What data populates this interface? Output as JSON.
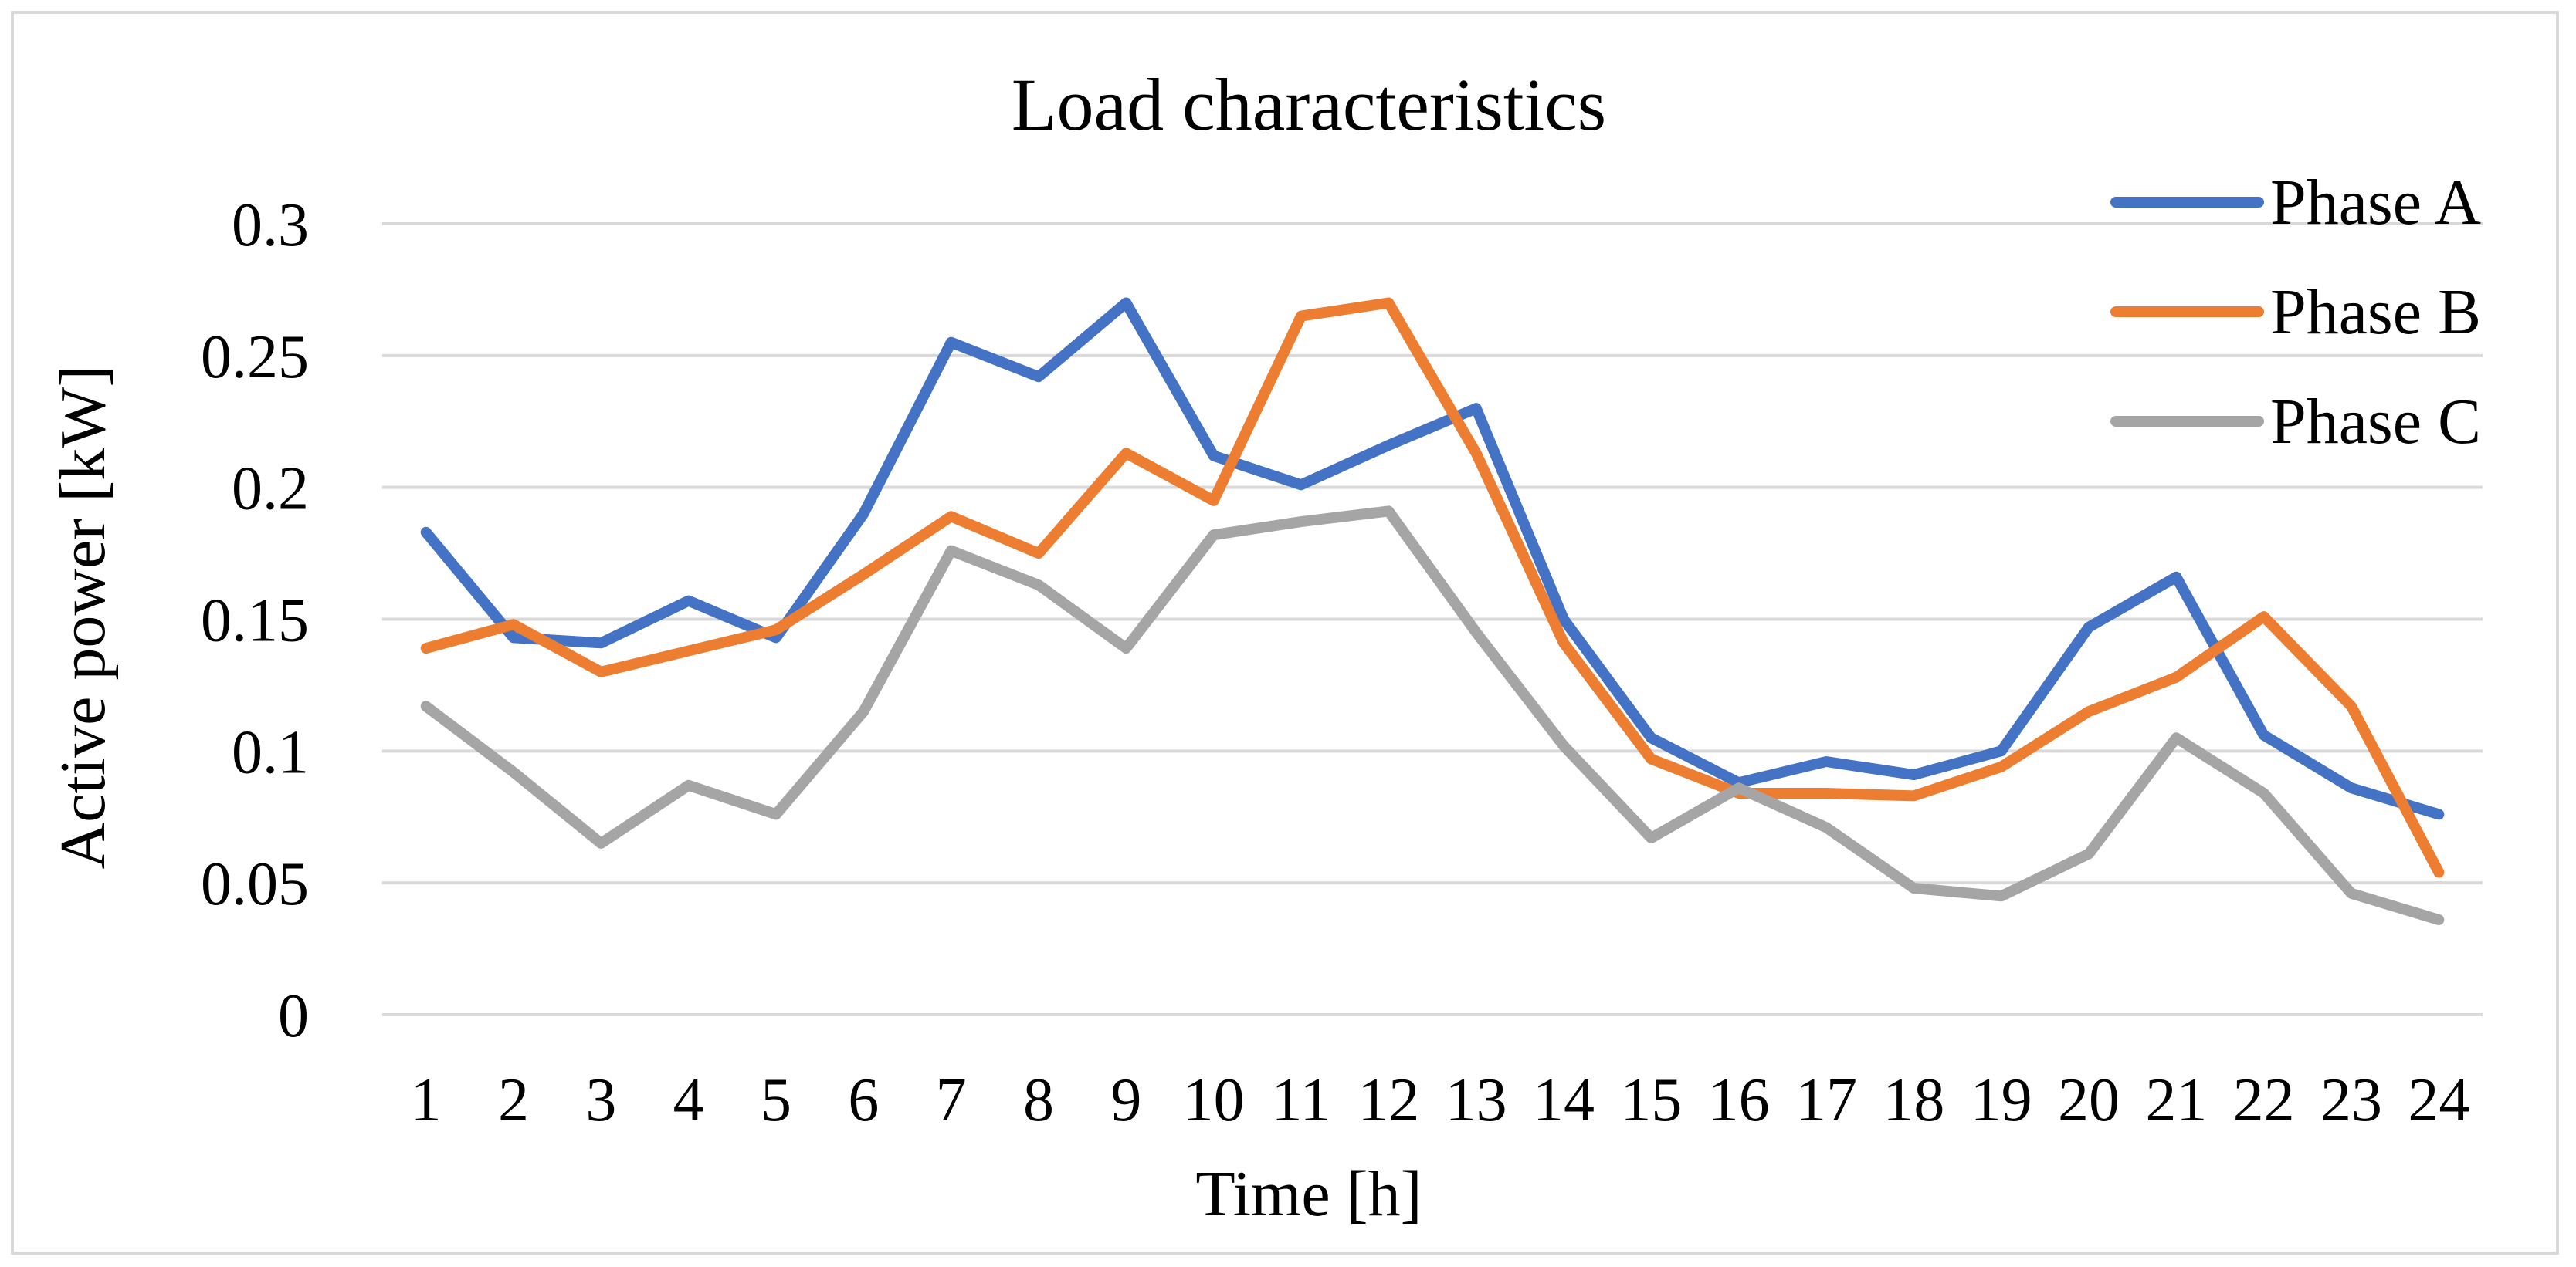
{
  "chart_data": {
    "type": "line",
    "title": "Load characteristics",
    "xlabel": "Time [h]",
    "ylabel": "Active power [kW]",
    "categories": [
      "1",
      "2",
      "3",
      "4",
      "5",
      "6",
      "7",
      "8",
      "9",
      "10",
      "11",
      "12",
      "13",
      "14",
      "15",
      "16",
      "17",
      "18",
      "19",
      "20",
      "21",
      "22",
      "23",
      "24"
    ],
    "ylim": [
      0,
      0.3
    ],
    "yticks": [
      "0",
      "0.05",
      "0.1",
      "0.15",
      "0.2",
      "0.25",
      "0.3"
    ],
    "grid": true,
    "legend_position": "top-right",
    "series": [
      {
        "name": "Phase A",
        "color": "#4472c4",
        "values": [
          0.183,
          0.143,
          0.141,
          0.157,
          0.143,
          0.19,
          0.255,
          0.242,
          0.27,
          0.212,
          0.201,
          0.216,
          0.23,
          0.15,
          0.105,
          0.088,
          0.096,
          0.091,
          0.1,
          0.147,
          0.166,
          0.106,
          0.086,
          0.076
        ]
      },
      {
        "name": "Phase B",
        "color": "#ed7d31",
        "values": [
          0.139,
          0.148,
          0.13,
          0.138,
          0.146,
          0.167,
          0.189,
          0.175,
          0.213,
          0.195,
          0.265,
          0.27,
          0.213,
          0.141,
          0.097,
          0.084,
          0.084,
          0.083,
          0.094,
          0.115,
          0.128,
          0.151,
          0.117,
          0.054
        ]
      },
      {
        "name": "Phase C",
        "color": "#a5a5a5",
        "values": [
          0.117,
          0.092,
          0.065,
          0.087,
          0.076,
          0.115,
          0.176,
          0.163,
          0.139,
          0.182,
          0.187,
          0.191,
          0.145,
          0.102,
          0.067,
          0.086,
          0.071,
          0.048,
          0.045,
          0.061,
          0.105,
          0.084,
          0.046,
          0.036
        ]
      }
    ]
  }
}
